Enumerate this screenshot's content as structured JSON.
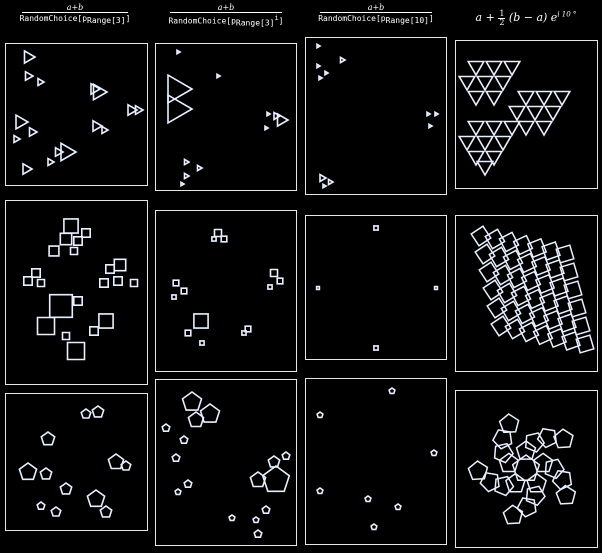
{
  "headers": [
    {
      "numerator": "a+b",
      "denominator_prefix": "RandomChoice[p",
      "denominator_sub": "Range[3]",
      "denominator_suffix": "]"
    },
    {
      "numerator": "a+b",
      "denominator_prefix": "RandomChoice[p",
      "denominator_sub": "Range[3]",
      "denominator_sup": "i",
      "denominator_suffix": "]"
    },
    {
      "numerator": "a+b",
      "denominator_prefix": "RandomChoice[p",
      "denominator_sub": "Range[10]",
      "denominator_suffix": "]"
    },
    {
      "formula_prefix": "a +",
      "half_numerator": "1",
      "half_denominator": "2",
      "formula_middle": "(b − a) e",
      "formula_exponent": "i 10 °"
    }
  ],
  "rows": [
    "triangles",
    "squares",
    "pentagons"
  ],
  "colors": {
    "background": "#000000",
    "stroke": "#ffffff",
    "shape_fill": "#e8f0ff",
    "frame": "#e6e6e6"
  }
}
